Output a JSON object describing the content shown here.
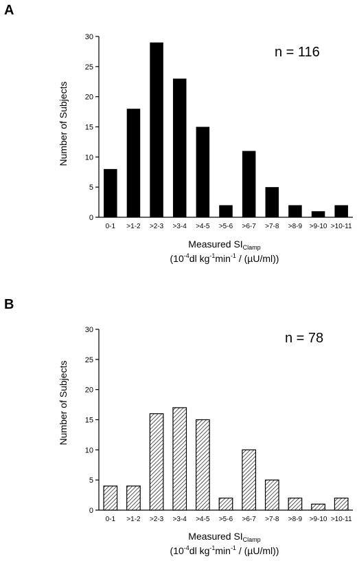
{
  "chart_data": [
    {
      "type": "bar",
      "panel_label": "A",
      "annotation": "n = 116",
      "categories": [
        "0-1",
        ">1-2",
        ">2-3",
        ">3-4",
        ">4-5",
        ">5-6",
        ">6-7",
        ">7-8",
        ">8-9",
        ">9-10",
        ">10-11"
      ],
      "values": [
        8,
        18,
        29,
        23,
        15,
        2,
        11,
        5,
        2,
        1,
        2
      ],
      "ylabel": "Number of Subjects",
      "xlabel_main": "Measured SI",
      "xlabel_sub": "Clamp",
      "xlabel_units": {
        "p1": "(10",
        "sup1": "-4",
        "p2": "dl kg",
        "sup2": "-1",
        "p3": "min",
        "sup3": "-1",
        "p4": " / (µU/ml))"
      },
      "yticks": [
        "0",
        "5",
        "10",
        "15",
        "20",
        "25",
        "30"
      ],
      "ylim": [
        0,
        30
      ],
      "bar_fill": "solid",
      "bar_color": "#000000"
    },
    {
      "type": "bar",
      "panel_label": "B",
      "annotation": "n = 78",
      "categories": [
        "0-1",
        ">1-2",
        ">2-3",
        ">3-4",
        ">4-5",
        ">5-6",
        ">6-7",
        ">7-8",
        ">8-9",
        ">9-10",
        ">10-11"
      ],
      "values": [
        4,
        4,
        16,
        17,
        15,
        2,
        10,
        5,
        2,
        1,
        2
      ],
      "ylabel": "Number of Subjects",
      "xlabel_main": "Measured SI",
      "xlabel_sub": "Clamp",
      "xlabel_units": {
        "p1": "(10",
        "sup1": "-4",
        "p2": "dl kg",
        "sup2": "-1",
        "p3": "min",
        "sup3": "-1",
        "p4": " / (µU/ml))"
      },
      "yticks": [
        "0",
        "5",
        "10",
        "15",
        "20",
        "25",
        "30"
      ],
      "ylim": [
        0,
        30
      ],
      "bar_fill": "hatched",
      "bar_color": "#000000"
    }
  ]
}
